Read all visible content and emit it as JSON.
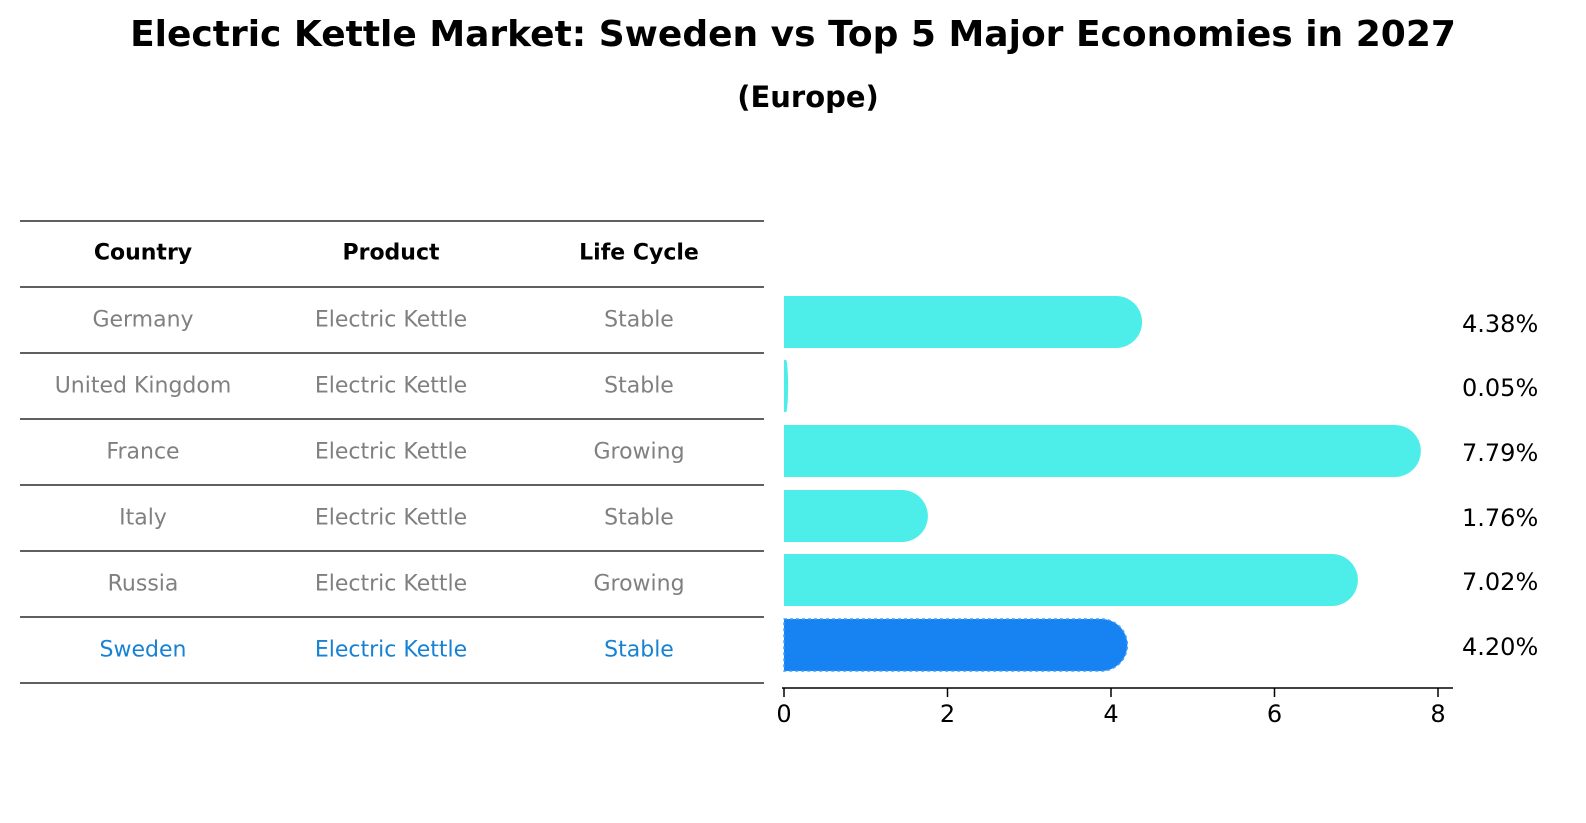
{
  "header": {
    "title": "Electric Kettle Market: Sweden vs Top 5 Major Economies in 2027",
    "subtitle": "(Europe)"
  },
  "colors": {
    "bar": "#4DEDEA",
    "highlight_bar": "#1782F2",
    "highlight_text": "#1782D4",
    "row_text": "#808080",
    "header_text": "#000000",
    "rule": "#000000"
  },
  "chart_data": {
    "type": "bar",
    "orientation": "horizontal",
    "title": "Electric Kettle Market: Sweden vs Top 5 Major Economies in 2027",
    "subtitle": "(Europe)",
    "table": {
      "columns": [
        "Country",
        "Product",
        "Life Cycle"
      ],
      "rows": [
        [
          "Germany",
          "Electric Kettle",
          "Stable"
        ],
        [
          "United Kingdom",
          "Electric Kettle",
          "Stable"
        ],
        [
          "France",
          "Electric Kettle",
          "Growing"
        ],
        [
          "Italy",
          "Electric Kettle",
          "Stable"
        ],
        [
          "Russia",
          "Electric Kettle",
          "Growing"
        ],
        [
          "Sweden",
          "Electric Kettle",
          "Stable"
        ]
      ],
      "highlight_row": 5
    },
    "categories": [
      "Germany",
      "United Kingdom",
      "France",
      "Italy",
      "Russia",
      "Sweden"
    ],
    "values": [
      4.38,
      0.05,
      7.79,
      1.76,
      7.02,
      4.2
    ],
    "value_labels": [
      "4.38%",
      "0.05%",
      "7.79%",
      "1.76%",
      "7.02%",
      "4.20%"
    ],
    "x_ticks": [
      "0",
      "2",
      "4",
      "6",
      "8"
    ],
    "xlim": [
      0,
      8.2
    ],
    "xlabel": "",
    "ylabel": "",
    "grid": false
  }
}
